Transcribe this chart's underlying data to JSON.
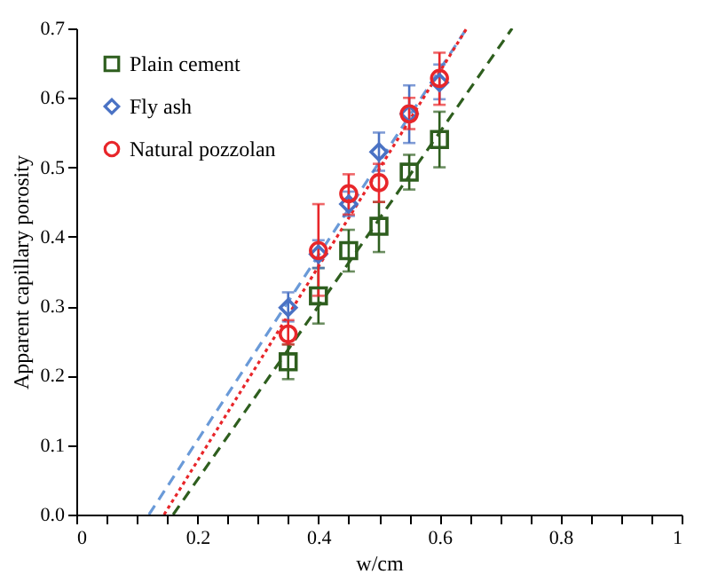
{
  "chart_data": {
    "type": "scatter",
    "xlabel": "w/cm",
    "ylabel": "Apparent capillary porosity",
    "xlim": [
      0,
      1
    ],
    "ylim": [
      0,
      0.7
    ],
    "xticks": [
      0,
      {
        "value": 0.05,
        "label": null
      },
      {
        "value": 0.1,
        "label": null
      },
      {
        "value": 0.15,
        "label": null
      },
      0.2,
      {
        "value": 0.25,
        "label": null
      },
      {
        "value": 0.3,
        "label": null
      },
      {
        "value": 0.35,
        "label": null
      },
      0.4,
      {
        "value": 0.45,
        "label": null
      },
      {
        "value": 0.5,
        "label": null
      },
      {
        "value": 0.55,
        "label": null
      },
      0.6,
      {
        "value": 0.65,
        "label": null
      },
      {
        "value": 0.7,
        "label": null
      },
      {
        "value": 0.75,
        "label": null
      },
      0.8,
      {
        "value": 0.85,
        "label": null
      },
      {
        "value": 0.9,
        "label": null
      },
      {
        "value": 0.95,
        "label": null
      },
      1
    ],
    "yticks": [
      {
        "value": 0,
        "label": "0.0"
      },
      0.1,
      0.2,
      0.3,
      0.4,
      0.5,
      0.6,
      0.7
    ],
    "grid": false,
    "legend": "top left",
    "x": [
      0.35,
      0.4,
      0.45,
      0.5,
      0.55,
      0.6
    ],
    "series": [
      {
        "name": "Plain cement",
        "color": "#2e5e1e",
        "marker": "square",
        "values": [
          0.22,
          0.315,
          0.38,
          0.415,
          0.493,
          0.54
        ],
        "errors": [
          [
            0.195,
            0.245
          ],
          [
            0.275,
            0.355
          ],
          [
            0.35,
            0.41
          ],
          [
            0.378,
            0.45
          ],
          [
            0.468,
            0.518
          ],
          [
            0.5,
            0.58
          ]
        ]
      },
      {
        "name": "Fly ash",
        "color": "#4a72c4",
        "marker": "diamond",
        "values": [
          0.298,
          0.375,
          0.447,
          0.522,
          0.577,
          0.622
        ],
        "errors": [
          [
            0.278,
            0.32
          ],
          [
            0.355,
            0.395
          ],
          [
            0.43,
            0.465
          ],
          [
            0.495,
            0.55
          ],
          [
            0.535,
            0.618
          ],
          [
            0.598,
            0.648
          ]
        ]
      },
      {
        "name": "Natural pozzolan",
        "color": "#e8262a",
        "marker": "circle",
        "values": [
          0.26,
          0.38,
          0.462,
          0.478,
          0.577,
          0.628
        ],
        "errors": [
          [
            0.245,
            0.28
          ],
          [
            0.315,
            0.447
          ],
          [
            0.432,
            0.49
          ],
          [
            0.45,
            0.505
          ],
          [
            0.555,
            0.6
          ],
          [
            0.59,
            0.665
          ]
        ]
      },
      {
        "type": "line",
        "color": "#2e5e1e",
        "line_style": "dashed",
        "x": [
          0.16,
          0.72
        ],
        "values": [
          0,
          0.7
        ]
      },
      {
        "type": "line",
        "color": "#6a9ad8",
        "line_style": "dashed",
        "x": [
          0.12,
          0.645
        ],
        "values": [
          0,
          0.7
        ]
      },
      {
        "type": "line",
        "color": "#e8262a",
        "line_style": "dotted",
        "x": [
          0.145,
          0.645
        ],
        "values": [
          0,
          0.7
        ]
      }
    ]
  }
}
